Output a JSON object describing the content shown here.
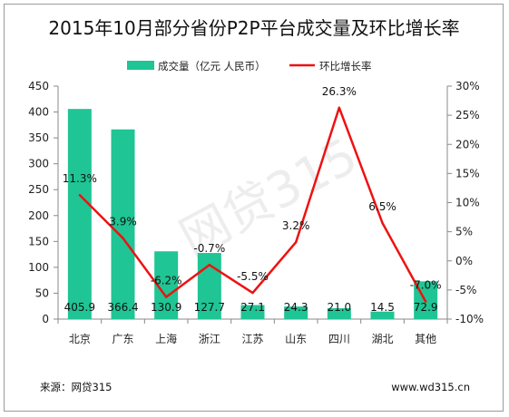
{
  "chart_data": {
    "type": "bar+line",
    "title": "2015年10月部分省份P2P平台成交量及环比增长率",
    "categories": [
      "北京",
      "广东",
      "上海",
      "浙江",
      "江苏",
      "山东",
      "四川",
      "湖北",
      "其他"
    ],
    "series": [
      {
        "name": "成交量（亿元 人民币）",
        "type": "bar",
        "axis": "left",
        "color": "#1fc594",
        "values": [
          405.9,
          366.4,
          130.9,
          127.7,
          27.1,
          24.3,
          21.0,
          14.5,
          72.9
        ],
        "labels": [
          "405.9",
          "366.4",
          "130.9",
          "127.7",
          "27.1",
          "24.3",
          "21.0",
          "14.5",
          "72.9"
        ]
      },
      {
        "name": "环比增长率",
        "type": "line",
        "axis": "right",
        "color": "#ee1111",
        "values": [
          11.3,
          3.9,
          -6.2,
          -0.7,
          -5.5,
          3.2,
          26.3,
          6.5,
          -7.0
        ],
        "labels": [
          "11.3%",
          "3.9%",
          "-6.2%",
          "-0.7%",
          "-5.5%",
          "3.2%",
          "26.3%",
          "6.5%",
          "-7.0%"
        ]
      }
    ],
    "y_left": {
      "range": [
        0,
        450
      ],
      "ticks": [
        0,
        50,
        100,
        150,
        200,
        250,
        300,
        350,
        400,
        450
      ],
      "tick_labels": [
        "0",
        "50",
        "100",
        "150",
        "200",
        "250",
        "300",
        "350",
        "400",
        "450"
      ]
    },
    "y_right": {
      "range": [
        -10,
        30
      ],
      "ticks": [
        -10,
        -5,
        0,
        5,
        10,
        15,
        20,
        25,
        30
      ],
      "tick_labels": [
        "-10%",
        "-5%",
        "0%",
        "5%",
        "10%",
        "15%",
        "20%",
        "25%",
        "30%"
      ]
    },
    "grid": false,
    "legend_position": "top"
  },
  "watermark": "网贷315",
  "footer": {
    "source": "来源：网贷315",
    "url": "www.wd315.cn"
  }
}
